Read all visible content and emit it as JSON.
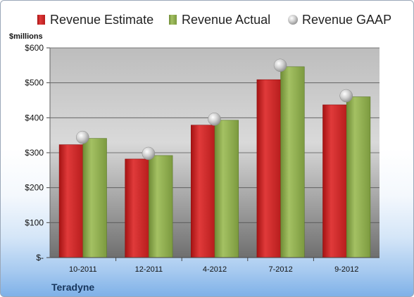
{
  "chart_data": {
    "type": "bar",
    "unit_label": "$millions",
    "company": "Teradyne",
    "categories": [
      "10-2011",
      "12-2011",
      "4-2012",
      "7-2012",
      "9-2012"
    ],
    "y_ticks": [
      "$-",
      "$100",
      "$200",
      "$300",
      "$400",
      "$500",
      "$600"
    ],
    "ylim": [
      0,
      600
    ],
    "grid": true,
    "legend_position": "top",
    "series": [
      {
        "name": "Revenue Estimate",
        "kind": "bar",
        "color": "#d42a2a",
        "values": [
          323,
          282,
          379,
          509,
          437
        ]
      },
      {
        "name": "Revenue Actual",
        "kind": "bar",
        "color": "#8fac4f",
        "values": [
          341,
          292,
          393,
          546,
          460
        ]
      },
      {
        "name": "Revenue GAAP",
        "kind": "marker",
        "color": "#c8c8c8",
        "values": [
          344,
          298,
          396,
          550,
          463
        ]
      }
    ]
  }
}
